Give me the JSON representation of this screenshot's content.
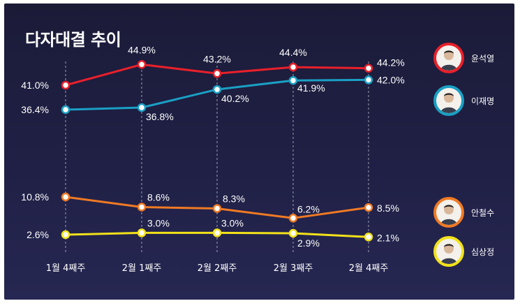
{
  "title": "다자대결 추이",
  "chart_data": {
    "type": "line",
    "categories": [
      "1월 4째주",
      "2월 1째주",
      "2월 2째주",
      "2월 3째주",
      "2월 4째주"
    ],
    "series": [
      {
        "name": "윤석열",
        "color": "#e8202a",
        "values": [
          41.0,
          44.9,
          43.2,
          44.4,
          44.2
        ],
        "labels": [
          "41.0%",
          "44.9%",
          "43.2%",
          "44.4%",
          "44.2%"
        ]
      },
      {
        "name": "이재명",
        "color": "#1aa0c4",
        "values": [
          36.4,
          36.8,
          40.2,
          41.9,
          42.0
        ],
        "labels": [
          "36.4%",
          "36.8%",
          "40.2%",
          "41.9%",
          "42.0%"
        ]
      },
      {
        "name": "안철수",
        "color": "#f07a24",
        "values": [
          10.8,
          8.6,
          8.3,
          6.2,
          8.5
        ],
        "labels": [
          "10.8%",
          "8.6%",
          "8.3%",
          "6.2%",
          "8.5%"
        ]
      },
      {
        "name": "심상정",
        "color": "#f2e21a",
        "values": [
          2.6,
          3.0,
          3.0,
          2.9,
          2.1
        ],
        "labels": [
          "2.6%",
          "3.0%",
          "3.0%",
          "2.9%",
          "2.1%"
        ]
      }
    ],
    "y_axis_visible": false,
    "grid": "vertical dashed lines at each category"
  },
  "legend": [
    {
      "name": "윤석열",
      "icon": "candidate-photo-icon",
      "ring_color": "#e8202a"
    },
    {
      "name": "이재명",
      "icon": "candidate-photo-icon",
      "ring_color": "#1aa0c4"
    },
    {
      "name": "안철수",
      "icon": "candidate-photo-icon",
      "ring_color": "#f07a24"
    },
    {
      "name": "심상정",
      "icon": "candidate-photo-icon",
      "ring_color": "#f2e21a"
    }
  ]
}
